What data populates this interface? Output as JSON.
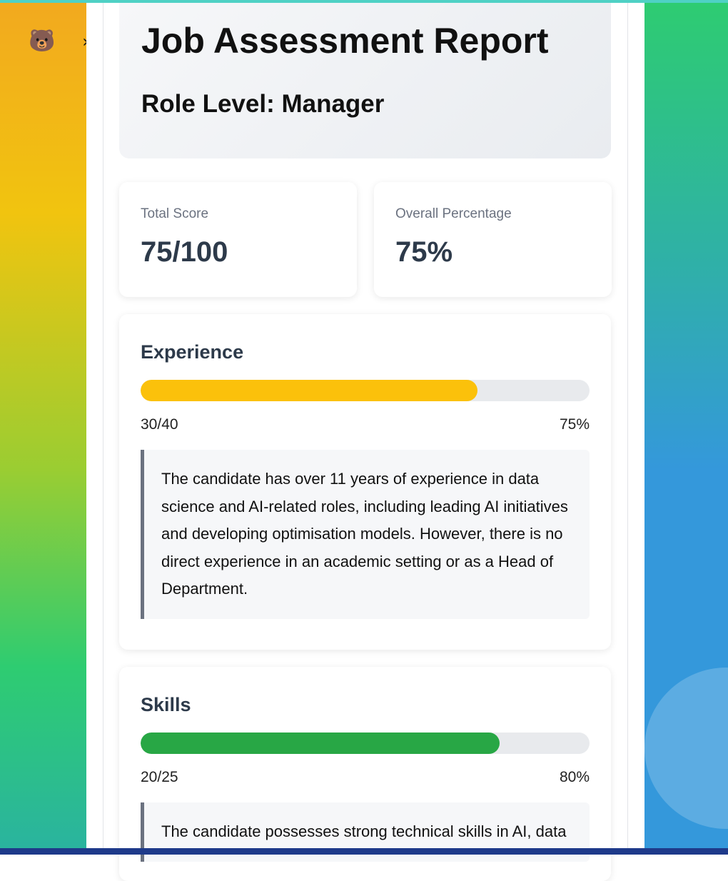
{
  "header": {
    "title": "Job Assessment Report",
    "role_level": "Role Level: Manager"
  },
  "stats": {
    "total_score_label": "Total Score",
    "total_score_value": "75/100",
    "overall_percentage_label": "Overall Percentage",
    "overall_percentage_value": "75%"
  },
  "sections": [
    {
      "title": "Experience",
      "score": "30/40",
      "percent_label": "75%",
      "progress_fraction": 0.75,
      "bar_color": "#fbc10b",
      "note": "The candidate has over 11 years of experience in data science and AI-related roles, including leading AI initiatives and developing optimisation models. However, there is no direct experience in an academic setting or as a Head of Department."
    },
    {
      "title": "Skills",
      "score": "20/25",
      "percent_label": "80%",
      "progress_fraction": 0.8,
      "bar_color": "#28a745",
      "note": "The candidate possesses strong technical skills in AI, data"
    }
  ],
  "sidebar": {
    "avatar_icon": "bear-icon",
    "toggle_icon": "chevron-right-icon"
  }
}
